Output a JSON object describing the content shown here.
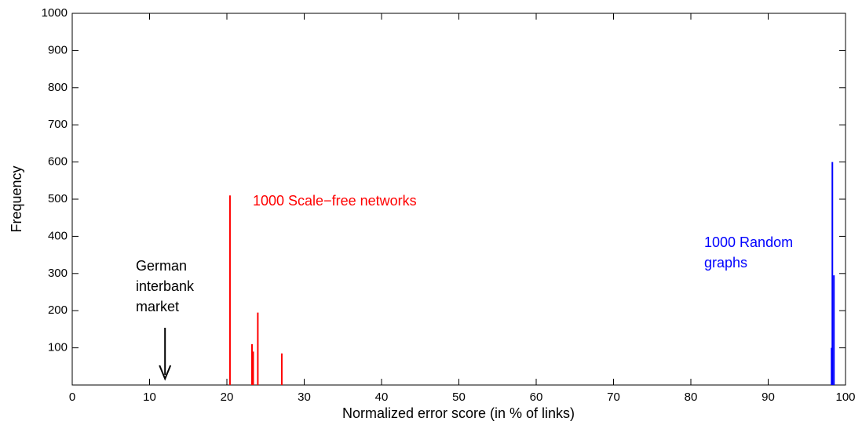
{
  "chart_data": {
    "type": "stem",
    "xlabel": "Normalized error score (in % of links)",
    "ylabel": "Frequency",
    "xlim": [
      0,
      100
    ],
    "xticks": [
      0,
      10,
      20,
      30,
      40,
      50,
      60,
      70,
      80,
      90,
      100
    ],
    "ylim": [
      0,
      1000
    ],
    "yticks": [
      100,
      200,
      300,
      400,
      500,
      600,
      700,
      800,
      900,
      1000
    ],
    "grid": false,
    "series": [
      {
        "name": "1000 Scale−free networks",
        "color": "#ff0000",
        "x": [
          20.4,
          23.25,
          23.4,
          24.0,
          27.1
        ],
        "values": [
          510,
          110,
          90,
          195,
          85
        ]
      },
      {
        "name": "1000 Random graphs",
        "color": "#0000ff",
        "x": [
          98.2,
          98.3,
          98.5
        ],
        "values": [
          100,
          600,
          295
        ]
      }
    ],
    "annotation": {
      "lines": [
        "German",
        "interbank",
        "market"
      ],
      "arrow_x": 12
    }
  }
}
